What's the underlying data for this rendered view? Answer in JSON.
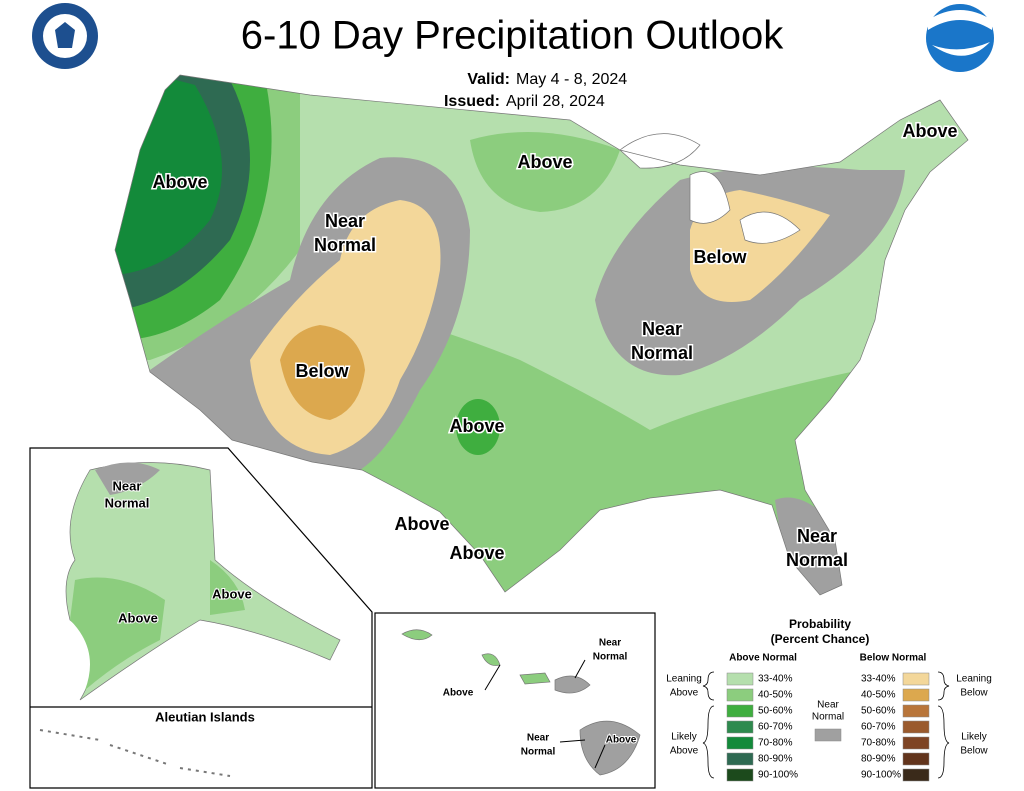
{
  "header": {
    "title": "6-10 Day Precipitation Outlook",
    "valid_label": "Valid:",
    "valid": "May 4 - 8, 2024",
    "issued_label": "Issued:",
    "issued": "April 28, 2024"
  },
  "map_labels": [
    [
      "Above"
    ],
    [
      "Near",
      "Normal"
    ],
    [
      "Below"
    ],
    [
      "Above"
    ],
    [
      "Above"
    ],
    [
      "Below"
    ],
    [
      "Near",
      "Normal"
    ],
    [
      "Above"
    ],
    [
      "Above"
    ],
    [
      "Above"
    ],
    [
      "Near",
      "Normal"
    ]
  ],
  "alaska_labels": [
    [
      "Near",
      "Normal"
    ],
    [
      "Above"
    ],
    [
      "Above"
    ]
  ],
  "aleutian_title": "Aleutian Islands",
  "hawaii_labels": [
    [
      "Near",
      "Normal"
    ],
    [
      "Above"
    ],
    [
      "Near",
      "Normal"
    ],
    [
      "Above"
    ]
  ],
  "legend": {
    "title": "Probability",
    "subtitle": "(Percent Chance)",
    "above_header": "Above Normal",
    "below_header": "Below Normal",
    "near_label": [
      "Near",
      "Normal"
    ],
    "near_color": "#a0a0a0",
    "leaning_above": [
      "Leaning",
      "Above"
    ],
    "likely_above": [
      "Likely",
      "Above"
    ],
    "leaning_below": [
      "Leaning",
      "Below"
    ],
    "likely_below": [
      "Likely",
      "Below"
    ],
    "above_rows": [
      {
        "label": "33-40%",
        "color": "#b5dfad"
      },
      {
        "label": "40-50%",
        "color": "#8ccd7e"
      },
      {
        "label": "50-60%",
        "color": "#3fae3f"
      },
      {
        "label": "60-70%",
        "color": "#2e8a4e"
      },
      {
        "label": "70-80%",
        "color": "#138a3a"
      },
      {
        "label": "80-90%",
        "color": "#2e6a52"
      },
      {
        "label": "90-100%",
        "color": "#1c4a1c"
      }
    ],
    "below_rows": [
      {
        "label": "33-40%",
        "color": "#f3d79a"
      },
      {
        "label": "40-50%",
        "color": "#dca84e"
      },
      {
        "label": "50-60%",
        "color": "#b8753a"
      },
      {
        "label": "60-70%",
        "color": "#9a5a2d"
      },
      {
        "label": "70-80%",
        "color": "#7e4424"
      },
      {
        "label": "80-90%",
        "color": "#62341c"
      },
      {
        "label": "90-100%",
        "color": "#3a2a1a"
      }
    ]
  }
}
